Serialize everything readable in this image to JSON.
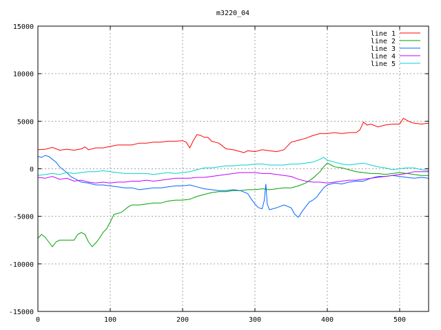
{
  "chart_data": {
    "type": "line",
    "title": "m3220_04",
    "xlim": [
      0,
      540
    ],
    "ylim": [
      -15000,
      15000
    ],
    "x_ticks": [
      0,
      100,
      200,
      300,
      400,
      500
    ],
    "y_ticks": [
      -15000,
      -10000,
      -5000,
      0,
      5000,
      10000,
      15000
    ],
    "grid": true,
    "legend_position": "top-right",
    "series": [
      {
        "name": "line 1",
        "color": "#ff0000",
        "points": [
          [
            0,
            2000
          ],
          [
            10,
            2050
          ],
          [
            20,
            2250
          ],
          [
            30,
            1950
          ],
          [
            40,
            2050
          ],
          [
            50,
            1950
          ],
          [
            60,
            2100
          ],
          [
            65,
            2300
          ],
          [
            70,
            2000
          ],
          [
            80,
            2200
          ],
          [
            90,
            2200
          ],
          [
            100,
            2350
          ],
          [
            110,
            2500
          ],
          [
            120,
            2500
          ],
          [
            130,
            2500
          ],
          [
            140,
            2700
          ],
          [
            150,
            2700
          ],
          [
            160,
            2800
          ],
          [
            170,
            2800
          ],
          [
            180,
            2900
          ],
          [
            190,
            2900
          ],
          [
            200,
            2950
          ],
          [
            205,
            2800
          ],
          [
            210,
            2200
          ],
          [
            215,
            3000
          ],
          [
            220,
            3600
          ],
          [
            225,
            3500
          ],
          [
            230,
            3300
          ],
          [
            235,
            3300
          ],
          [
            240,
            2900
          ],
          [
            245,
            2800
          ],
          [
            250,
            2700
          ],
          [
            255,
            2400
          ],
          [
            260,
            2100
          ],
          [
            270,
            2000
          ],
          [
            280,
            1800
          ],
          [
            285,
            1700
          ],
          [
            290,
            1900
          ],
          [
            300,
            1800
          ],
          [
            310,
            2000
          ],
          [
            320,
            1900
          ],
          [
            330,
            1800
          ],
          [
            340,
            2000
          ],
          [
            345,
            2400
          ],
          [
            350,
            2800
          ],
          [
            360,
            3000
          ],
          [
            370,
            3200
          ],
          [
            380,
            3500
          ],
          [
            390,
            3700
          ],
          [
            400,
            3700
          ],
          [
            410,
            3800
          ],
          [
            420,
            3700
          ],
          [
            430,
            3800
          ],
          [
            440,
            3800
          ],
          [
            445,
            4100
          ],
          [
            450,
            4900
          ],
          [
            455,
            4600
          ],
          [
            460,
            4700
          ],
          [
            470,
            4400
          ],
          [
            480,
            4600
          ],
          [
            490,
            4700
          ],
          [
            500,
            4700
          ],
          [
            505,
            5300
          ],
          [
            510,
            5100
          ],
          [
            515,
            4900
          ],
          [
            520,
            4800
          ],
          [
            530,
            4700
          ],
          [
            540,
            4800
          ]
        ]
      },
      {
        "name": "line 2",
        "color": "#00a000",
        "points": [
          [
            0,
            -7300
          ],
          [
            5,
            -6900
          ],
          [
            10,
            -7200
          ],
          [
            15,
            -7700
          ],
          [
            20,
            -8200
          ],
          [
            25,
            -7700
          ],
          [
            30,
            -7500
          ],
          [
            40,
            -7500
          ],
          [
            50,
            -7500
          ],
          [
            55,
            -6900
          ],
          [
            60,
            -6700
          ],
          [
            65,
            -6900
          ],
          [
            70,
            -7700
          ],
          [
            75,
            -8200
          ],
          [
            80,
            -7800
          ],
          [
            85,
            -7300
          ],
          [
            90,
            -6700
          ],
          [
            95,
            -6300
          ],
          [
            100,
            -5600
          ],
          [
            105,
            -4800
          ],
          [
            110,
            -4700
          ],
          [
            115,
            -4600
          ],
          [
            120,
            -4300
          ],
          [
            125,
            -4000
          ],
          [
            130,
            -3800
          ],
          [
            140,
            -3800
          ],
          [
            150,
            -3700
          ],
          [
            160,
            -3600
          ],
          [
            170,
            -3600
          ],
          [
            180,
            -3400
          ],
          [
            190,
            -3300
          ],
          [
            200,
            -3300
          ],
          [
            210,
            -3200
          ],
          [
            220,
            -2900
          ],
          [
            230,
            -2700
          ],
          [
            240,
            -2500
          ],
          [
            250,
            -2400
          ],
          [
            260,
            -2400
          ],
          [
            270,
            -2300
          ],
          [
            280,
            -2300
          ],
          [
            290,
            -2200
          ],
          [
            300,
            -2200
          ],
          [
            310,
            -2100
          ],
          [
            320,
            -2200
          ],
          [
            330,
            -2100
          ],
          [
            340,
            -2000
          ],
          [
            350,
            -2000
          ],
          [
            360,
            -1800
          ],
          [
            370,
            -1500
          ],
          [
            380,
            -1000
          ],
          [
            390,
            -300
          ],
          [
            395,
            200
          ],
          [
            400,
            600
          ],
          [
            405,
            400
          ],
          [
            410,
            200
          ],
          [
            420,
            100
          ],
          [
            430,
            -100
          ],
          [
            440,
            -300
          ],
          [
            450,
            -400
          ],
          [
            460,
            -500
          ],
          [
            470,
            -500
          ],
          [
            480,
            -600
          ],
          [
            490,
            -500
          ],
          [
            500,
            -400
          ],
          [
            510,
            -500
          ],
          [
            520,
            -600
          ],
          [
            530,
            -700
          ],
          [
            540,
            -700
          ]
        ]
      },
      {
        "name": "line 3",
        "color": "#0064ff",
        "points": [
          [
            0,
            1300
          ],
          [
            5,
            1200
          ],
          [
            10,
            1400
          ],
          [
            15,
            1300
          ],
          [
            20,
            1000
          ],
          [
            25,
            700
          ],
          [
            30,
            200
          ],
          [
            35,
            -100
          ],
          [
            40,
            -400
          ],
          [
            45,
            -800
          ],
          [
            50,
            -1000
          ],
          [
            55,
            -1200
          ],
          [
            60,
            -1400
          ],
          [
            70,
            -1500
          ],
          [
            80,
            -1700
          ],
          [
            90,
            -1700
          ],
          [
            100,
            -1800
          ],
          [
            110,
            -1900
          ],
          [
            120,
            -2000
          ],
          [
            130,
            -2000
          ],
          [
            140,
            -2200
          ],
          [
            150,
            -2100
          ],
          [
            160,
            -2000
          ],
          [
            170,
            -2000
          ],
          [
            180,
            -1900
          ],
          [
            190,
            -1800
          ],
          [
            200,
            -1800
          ],
          [
            210,
            -1700
          ],
          [
            220,
            -1900
          ],
          [
            230,
            -2100
          ],
          [
            240,
            -2200
          ],
          [
            250,
            -2300
          ],
          [
            260,
            -2300
          ],
          [
            270,
            -2200
          ],
          [
            280,
            -2300
          ],
          [
            290,
            -2600
          ],
          [
            295,
            -3200
          ],
          [
            300,
            -3700
          ],
          [
            305,
            -4100
          ],
          [
            310,
            -4200
          ],
          [
            313,
            -3300
          ],
          [
            315,
            -1600
          ],
          [
            317,
            -3700
          ],
          [
            320,
            -4300
          ],
          [
            330,
            -4100
          ],
          [
            340,
            -3800
          ],
          [
            350,
            -4100
          ],
          [
            355,
            -4800
          ],
          [
            360,
            -5100
          ],
          [
            365,
            -4500
          ],
          [
            370,
            -4000
          ],
          [
            375,
            -3500
          ],
          [
            380,
            -3300
          ],
          [
            385,
            -3000
          ],
          [
            390,
            -2500
          ],
          [
            395,
            -2000
          ],
          [
            400,
            -1700
          ],
          [
            410,
            -1500
          ],
          [
            420,
            -1600
          ],
          [
            430,
            -1400
          ],
          [
            440,
            -1300
          ],
          [
            450,
            -1300
          ],
          [
            460,
            -1000
          ],
          [
            470,
            -800
          ],
          [
            480,
            -800
          ],
          [
            490,
            -700
          ],
          [
            500,
            -800
          ],
          [
            510,
            -900
          ],
          [
            520,
            -1000
          ],
          [
            530,
            -900
          ],
          [
            540,
            -1000
          ]
        ]
      },
      {
        "name": "line 4",
        "color": "#c000ff",
        "points": [
          [
            0,
            -900
          ],
          [
            10,
            -1000
          ],
          [
            20,
            -800
          ],
          [
            30,
            -1100
          ],
          [
            40,
            -1000
          ],
          [
            50,
            -1300
          ],
          [
            60,
            -1200
          ],
          [
            70,
            -1400
          ],
          [
            80,
            -1500
          ],
          [
            90,
            -1400
          ],
          [
            100,
            -1500
          ],
          [
            110,
            -1400
          ],
          [
            120,
            -1400
          ],
          [
            130,
            -1300
          ],
          [
            140,
            -1300
          ],
          [
            150,
            -1200
          ],
          [
            160,
            -1300
          ],
          [
            170,
            -1200
          ],
          [
            180,
            -1100
          ],
          [
            190,
            -1000
          ],
          [
            200,
            -1000
          ],
          [
            210,
            -1000
          ],
          [
            220,
            -900
          ],
          [
            230,
            -900
          ],
          [
            240,
            -800
          ],
          [
            250,
            -700
          ],
          [
            260,
            -600
          ],
          [
            270,
            -500
          ],
          [
            280,
            -400
          ],
          [
            290,
            -400
          ],
          [
            300,
            -400
          ],
          [
            310,
            -500
          ],
          [
            320,
            -500
          ],
          [
            330,
            -600
          ],
          [
            340,
            -700
          ],
          [
            350,
            -800
          ],
          [
            360,
            -1100
          ],
          [
            370,
            -1300
          ],
          [
            380,
            -1400
          ],
          [
            390,
            -1400
          ],
          [
            400,
            -1500
          ],
          [
            410,
            -1400
          ],
          [
            420,
            -1300
          ],
          [
            430,
            -1200
          ],
          [
            440,
            -1200
          ],
          [
            450,
            -1100
          ],
          [
            460,
            -1000
          ],
          [
            470,
            -900
          ],
          [
            480,
            -800
          ],
          [
            490,
            -700
          ],
          [
            500,
            -600
          ],
          [
            510,
            -500
          ],
          [
            520,
            -300
          ],
          [
            530,
            -300
          ],
          [
            540,
            -300
          ]
        ]
      },
      {
        "name": "line 5",
        "color": "#00d0d0",
        "points": [
          [
            0,
            -700
          ],
          [
            10,
            -600
          ],
          [
            20,
            -500
          ],
          [
            30,
            -600
          ],
          [
            40,
            -400
          ],
          [
            50,
            -500
          ],
          [
            60,
            -400
          ],
          [
            70,
            -300
          ],
          [
            80,
            -300
          ],
          [
            90,
            -200
          ],
          [
            100,
            -300
          ],
          [
            110,
            -400
          ],
          [
            120,
            -500
          ],
          [
            130,
            -500
          ],
          [
            140,
            -500
          ],
          [
            150,
            -500
          ],
          [
            160,
            -600
          ],
          [
            170,
            -500
          ],
          [
            180,
            -400
          ],
          [
            190,
            -500
          ],
          [
            200,
            -400
          ],
          [
            210,
            -300
          ],
          [
            220,
            -100
          ],
          [
            230,
            100
          ],
          [
            240,
            100
          ],
          [
            250,
            200
          ],
          [
            260,
            300
          ],
          [
            270,
            300
          ],
          [
            280,
            400
          ],
          [
            290,
            400
          ],
          [
            300,
            500
          ],
          [
            310,
            500
          ],
          [
            320,
            400
          ],
          [
            330,
            400
          ],
          [
            340,
            400
          ],
          [
            350,
            500
          ],
          [
            360,
            500
          ],
          [
            370,
            600
          ],
          [
            380,
            700
          ],
          [
            390,
            1000
          ],
          [
            395,
            1200
          ],
          [
            400,
            900
          ],
          [
            410,
            700
          ],
          [
            420,
            500
          ],
          [
            430,
            400
          ],
          [
            440,
            500
          ],
          [
            450,
            600
          ],
          [
            460,
            400
          ],
          [
            470,
            200
          ],
          [
            480,
            100
          ],
          [
            490,
            -100
          ],
          [
            500,
            0
          ],
          [
            510,
            100
          ],
          [
            520,
            100
          ],
          [
            530,
            -100
          ],
          [
            540,
            -200
          ]
        ]
      }
    ]
  }
}
